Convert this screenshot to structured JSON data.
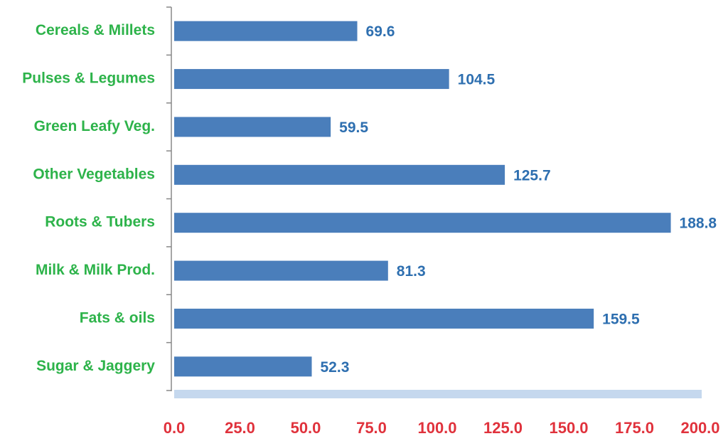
{
  "chart_data": {
    "type": "bar",
    "orientation": "horizontal",
    "categories": [
      "Cereals & Millets",
      "Pulses & Legumes",
      "Green Leafy Veg.",
      "Other Vegetables",
      "Roots & Tubers",
      "Milk & Milk Prod.",
      "Fats & oils",
      "Sugar & Jaggery"
    ],
    "values": [
      69.6,
      104.5,
      59.5,
      125.7,
      188.8,
      81.3,
      159.5,
      52.3
    ],
    "color": "#4a7ebb",
    "xlim": [
      0,
      200
    ],
    "xticks": [
      {
        "value": 0,
        "label": "0.0"
      },
      {
        "value": 25,
        "label": "25.0"
      },
      {
        "value": 50,
        "label": "50.0"
      },
      {
        "value": 75,
        "label": "75.0"
      },
      {
        "value": 100,
        "label": "100.0"
      },
      {
        "value": 125,
        "label": "125.0"
      },
      {
        "value": 150,
        "label": "150.0"
      },
      {
        "value": 175,
        "label": "175.0"
      },
      {
        "value": 200,
        "label": "200.0"
      }
    ],
    "grid": false
  }
}
